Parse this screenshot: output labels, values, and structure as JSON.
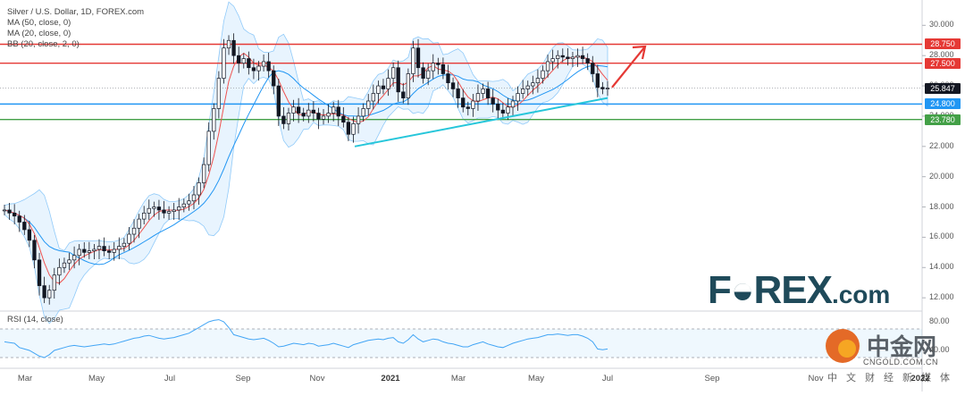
{
  "legend": {
    "title": "Silver / U.S. Dollar, 1D, FOREX.com",
    "ma50": "MA (50, close, 0)",
    "ma20": "MA (20, close, 0)",
    "bb": "BB (20, close, 2, 0)",
    "rsi": "RSI (14, close)"
  },
  "price_axis": {
    "ticks": [
      "30.000",
      "28.000",
      "26.000",
      "24.000",
      "22.000",
      "20.000",
      "18.000",
      "16.000",
      "14.000",
      "12.000"
    ],
    "tick_values": [
      30,
      28,
      26,
      24,
      22,
      20,
      18,
      16,
      14,
      12
    ]
  },
  "rsi_axis": {
    "ticks": [
      "80.00",
      "40.00"
    ],
    "tick_values": [
      80,
      40
    ]
  },
  "x_axis": {
    "ticks": [
      {
        "label": "Mar",
        "bold": false
      },
      {
        "label": "May",
        "bold": false
      },
      {
        "label": "Jul",
        "bold": false
      },
      {
        "label": "Sep",
        "bold": false
      },
      {
        "label": "Nov",
        "bold": false
      },
      {
        "label": "2021",
        "bold": true
      },
      {
        "label": "Mar",
        "bold": false
      },
      {
        "label": "May",
        "bold": false
      },
      {
        "label": "Jul",
        "bold": false
      },
      {
        "label": "Sep",
        "bold": false
      },
      {
        "label": "Nov",
        "bold": false
      },
      {
        "label": "2022",
        "bold": true
      }
    ]
  },
  "price_tags": [
    {
      "label": "28.750",
      "value": 28.75,
      "color": "#e53935"
    },
    {
      "label": "27.500",
      "value": 27.5,
      "color": "#e53935"
    },
    {
      "label": "25.847",
      "value": 25.847,
      "color": "#131722"
    },
    {
      "label": "24.800",
      "value": 24.8,
      "color": "#2196f3"
    },
    {
      "label": "23.780",
      "value": 23.78,
      "color": "#43a047"
    }
  ],
  "watermark": {
    "forex_brand": "F",
    "forex_rest": "REX",
    "forex_com": ".com",
    "cngold_name": "中金网",
    "cngold_url": "CNGOLD.COM.CN",
    "cngold_tag": "中文财经新媒体"
  },
  "chart_data": {
    "type": "line",
    "series": [
      {
        "values": [
          17.8,
          17.6,
          17.4,
          17.0,
          16.5,
          15.8,
          14.5,
          12.8,
          12.0,
          12.5,
          13.5,
          14.0,
          14.3,
          14.5,
          14.8,
          15.2,
          15.0,
          15.1,
          15.2,
          15.4,
          15.1,
          15.0,
          15.2,
          15.4,
          15.6,
          16.2,
          16.6,
          17.2,
          17.6,
          17.9,
          18.0,
          17.8,
          17.6,
          17.7,
          17.8,
          18.0,
          18.2,
          18.4,
          18.8,
          19.6,
          20.8,
          23.0,
          24.5,
          26.5,
          28.5,
          29.0,
          28.0,
          27.5,
          27.8,
          27.2,
          27.0,
          27.3,
          27.6,
          27.0,
          26.0,
          24.0,
          23.5,
          24.2,
          24.6,
          24.2,
          24.0,
          24.4,
          24.2,
          23.8,
          24.0,
          24.2,
          24.6,
          24.0,
          23.6,
          22.8,
          23.5,
          24.0,
          24.5,
          25.0,
          25.5,
          26.0,
          25.8,
          26.5,
          27.2,
          25.6,
          25.2,
          26.8,
          28.5,
          27.2,
          26.5,
          27.0,
          27.5,
          27.4,
          26.8,
          26.2,
          25.8,
          25.2,
          24.6,
          24.5,
          25.0,
          25.5,
          25.8,
          25.2,
          24.8,
          24.4,
          24.2,
          24.6,
          25.0,
          25.5,
          25.8,
          26.0,
          26.2,
          26.5,
          27.0,
          27.6,
          27.8,
          28.0,
          27.9,
          27.8,
          27.9,
          28.0,
          27.8,
          27.5,
          26.8,
          25.9,
          25.8,
          25.85
        ],
        "name": ""
      }
    ],
    "x_range": [
      "2020-02",
      "2021-06"
    ],
    "ylim": [
      11.3,
      31.2
    ],
    "horizontal_levels": [
      28.75,
      27.5,
      24.8,
      23.78
    ],
    "trendline": {
      "start": [
        "2020-11",
        22.0
      ],
      "end": [
        "2021-06",
        25.2
      ]
    },
    "projection_arrow": {
      "start": [
        "2021-06",
        25.9
      ],
      "end": [
        "2021-07",
        28.6
      ]
    },
    "rsi": {
      "values": [
        52,
        51,
        50,
        44,
        42,
        40,
        36,
        32,
        30,
        34,
        40,
        42,
        44,
        46,
        47,
        46,
        45,
        46,
        47,
        48,
        49,
        48,
        49,
        51,
        53,
        55,
        57,
        58,
        60,
        61,
        59,
        57,
        56,
        57,
        58,
        60,
        62,
        64,
        68,
        72,
        76,
        80,
        82,
        83,
        80,
        72,
        62,
        60,
        58,
        56,
        55,
        56,
        57,
        54,
        50,
        45,
        46,
        48,
        50,
        49,
        48,
        50,
        49,
        46,
        47,
        48,
        50,
        48,
        46,
        44,
        48,
        50,
        52,
        54,
        55,
        56,
        55,
        57,
        58,
        52,
        50,
        55,
        62,
        56,
        52,
        54,
        56,
        55,
        52,
        50,
        49,
        47,
        45,
        45,
        48,
        50,
        52,
        49,
        47,
        45,
        44,
        47,
        50,
        52,
        54,
        56,
        57,
        58,
        60,
        62,
        62,
        63,
        62,
        61,
        62,
        62,
        60,
        57,
        52,
        42,
        41,
        42
      ],
      "band": [
        70,
        30
      ],
      "ylim": [
        20,
        90
      ]
    },
    "grid": true
  }
}
